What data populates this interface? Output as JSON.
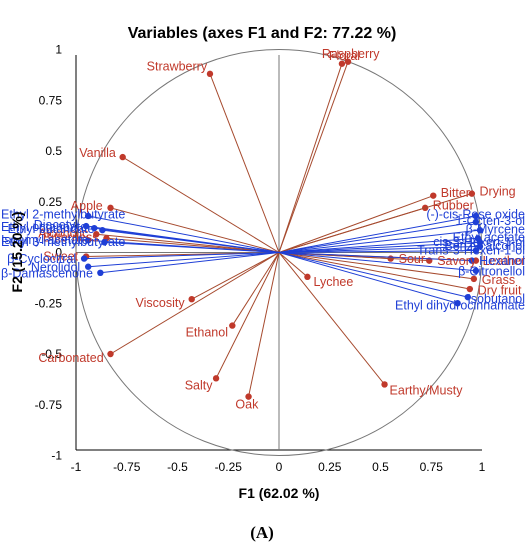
{
  "caption": "(A)",
  "colors": {
    "sensory": "#c0392b",
    "sensory_line": "#a64a2e",
    "volatile": "#1f3fd6",
    "volatile_line": "#1f3fd6"
  },
  "chart_data": {
    "type": "scatter",
    "title": "Variables (axes F1 and F2: 77.22 %)",
    "xlabel": "F1 (62.02 %)",
    "ylabel": "F2 (15.20 %)",
    "xlim": [
      -1,
      1
    ],
    "ylim": [
      -1,
      1
    ],
    "xticks": [
      "-1",
      "-0.75",
      "-0.5",
      "-0.25",
      "0",
      "0.25",
      "0.5",
      "0.75",
      "1"
    ],
    "yticks": [
      "1",
      "0.75",
      "0.5",
      "0.25",
      "0",
      "-0.25",
      "-0.5",
      "-0.75",
      "-1"
    ],
    "grid": false,
    "unit_circle": true,
    "series": [
      {
        "group": "sensory",
        "points": [
          {
            "label": "Raspberry",
            "x": 0.34,
            "y": 0.94
          },
          {
            "label": "Floral",
            "x": 0.31,
            "y": 0.93
          },
          {
            "label": "Strawberry",
            "x": -0.34,
            "y": 0.88
          },
          {
            "label": "Vanilla",
            "x": -0.77,
            "y": 0.47
          },
          {
            "label": "Apple",
            "x": -0.83,
            "y": 0.22
          },
          {
            "label": "Alcoholic",
            "x": -0.9,
            "y": 0.09
          },
          {
            "label": "Sweet",
            "x": -0.95,
            "y": -0.02
          },
          {
            "label": "Viscosity",
            "x": -0.43,
            "y": -0.23
          },
          {
            "label": "Ethanol",
            "x": -0.23,
            "y": -0.36
          },
          {
            "label": "Carbonated",
            "x": -0.83,
            "y": -0.5
          },
          {
            "label": "Salty",
            "x": -0.31,
            "y": -0.62
          },
          {
            "label": "Oak",
            "x": -0.15,
            "y": -0.71
          },
          {
            "label": "Lychee",
            "x": 0.14,
            "y": -0.12
          },
          {
            "label": "Earthy/Musty",
            "x": 0.52,
            "y": -0.65
          },
          {
            "label": "Sour",
            "x": 0.55,
            "y": -0.03
          },
          {
            "label": "Savory",
            "x": 0.74,
            "y": -0.04
          },
          {
            "label": "Bitter",
            "x": 0.76,
            "y": 0.28
          },
          {
            "label": "Rubber",
            "x": 0.72,
            "y": 0.22
          },
          {
            "label": "Drying",
            "x": 0.95,
            "y": 0.29
          },
          {
            "label": "Leather",
            "x": 0.97,
            "y": -0.04
          },
          {
            "label": "Grass",
            "x": 0.96,
            "y": -0.13
          },
          {
            "label": "Dry fruit",
            "x": 0.94,
            "y": -0.18
          },
          {
            "label": "Bitterness",
            "x": -0.85,
            "y": 0.07
          }
        ]
      },
      {
        "group": "volatile",
        "points": [
          {
            "label": "Ethyl 2-methylbutyrate",
            "x": -0.94,
            "y": 0.18
          },
          {
            "label": "Diacetyl",
            "x": -0.95,
            "y": 0.13
          },
          {
            "label": "Ethyl octanoate",
            "x": -0.91,
            "y": 0.12
          },
          {
            "label": "Ethyl butanoate",
            "x": -0.87,
            "y": 0.11
          },
          {
            "label": "Isoamyl acetate",
            "x": -0.94,
            "y": 0.06
          },
          {
            "label": "Ethyl 3-methylbutyrate",
            "x": -0.86,
            "y": 0.05
          },
          {
            "label": "Nerolidol",
            "x": -0.94,
            "y": -0.07
          },
          {
            "label": "β-Damascenone",
            "x": -0.88,
            "y": -0.1
          },
          {
            "label": "β-Cyclocitral",
            "x": -0.96,
            "y": -0.03
          },
          {
            "label": "(-)-cis-Rose oxide",
            "x": 0.97,
            "y": 0.18
          },
          {
            "label": "1-Octen-3-ol",
            "x": 0.97,
            "y": 0.15
          },
          {
            "label": "β-Myrcene",
            "x": 0.99,
            "y": 0.11
          },
          {
            "label": "Ethyl acetate",
            "x": 0.98,
            "y": 0.07
          },
          {
            "label": "cis-3-Hexen-1-ol",
            "x": 0.99,
            "y": 0.05
          },
          {
            "label": "Benzyl alcohol",
            "x": 0.99,
            "y": 0.03
          },
          {
            "label": "Trans-3-Hexen-1-ol",
            "x": 0.97,
            "y": 0.01
          },
          {
            "label": "Hexanol",
            "x": 0.95,
            "y": -0.04
          },
          {
            "label": "β-Citronellol",
            "x": 0.97,
            "y": -0.09
          },
          {
            "label": "Isobutanol",
            "x": 0.93,
            "y": -0.22
          },
          {
            "label": "Ethyl dihydrocinnamate",
            "x": 0.88,
            "y": -0.25
          }
        ]
      }
    ]
  }
}
